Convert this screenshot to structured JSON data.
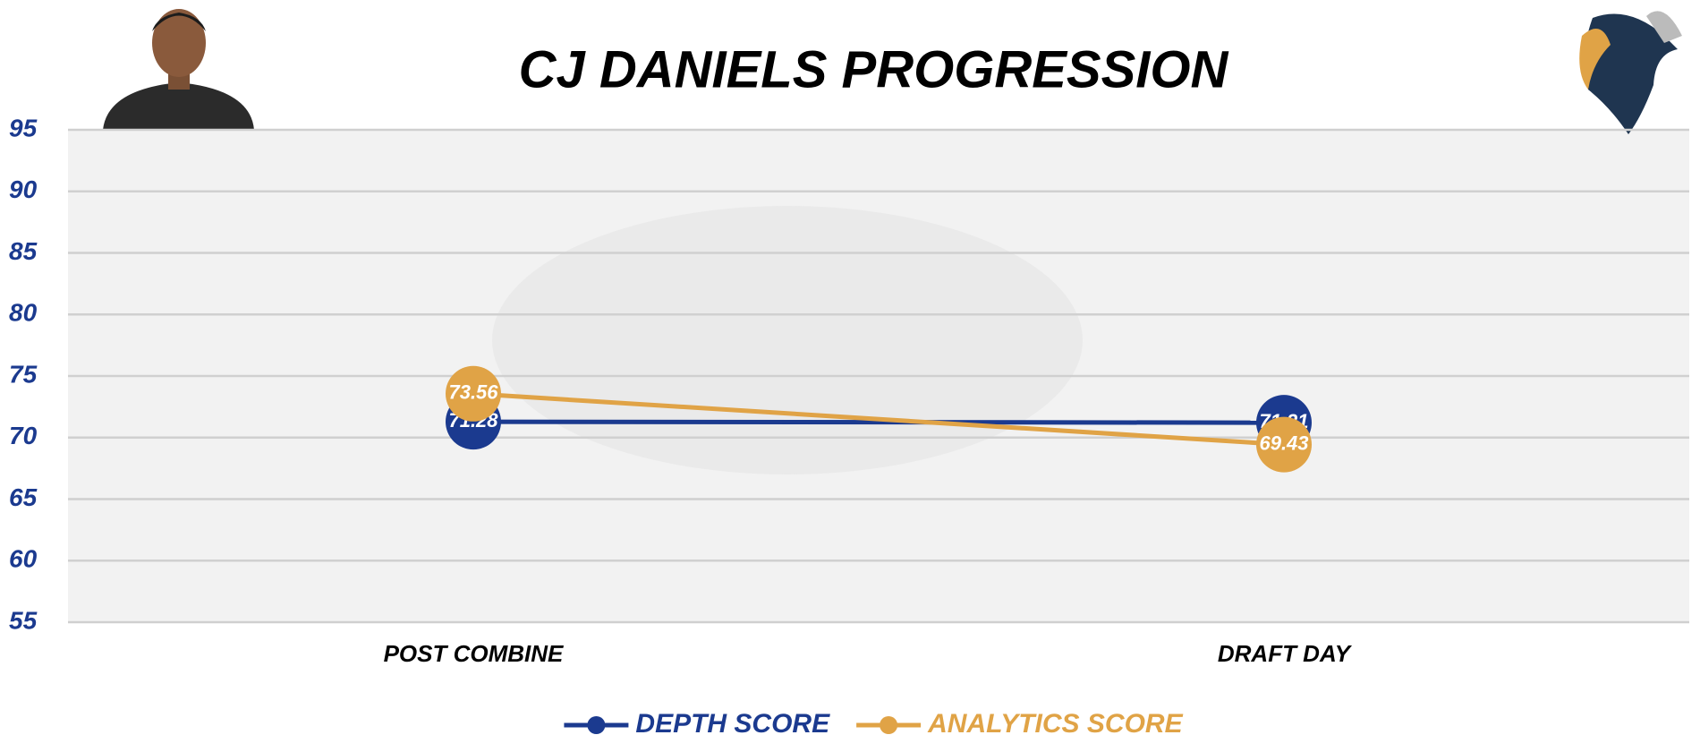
{
  "chart_data": {
    "type": "line",
    "title": "CJ DANIELS PROGRESSION",
    "categories": [
      "POST COMBINE",
      "DRAFT DAY"
    ],
    "series": [
      {
        "name": "DEPTH SCORE",
        "color": "#1b3a8f",
        "values": [
          71.28,
          71.21
        ]
      },
      {
        "name": "ANALYTICS SCORE",
        "color": "#e0a346",
        "values": [
          73.56,
          69.43
        ]
      }
    ],
    "ylim": [
      55,
      95
    ],
    "yticks": [
      55,
      60,
      65,
      70,
      75,
      80,
      85,
      90,
      95
    ],
    "grid": true
  }
}
